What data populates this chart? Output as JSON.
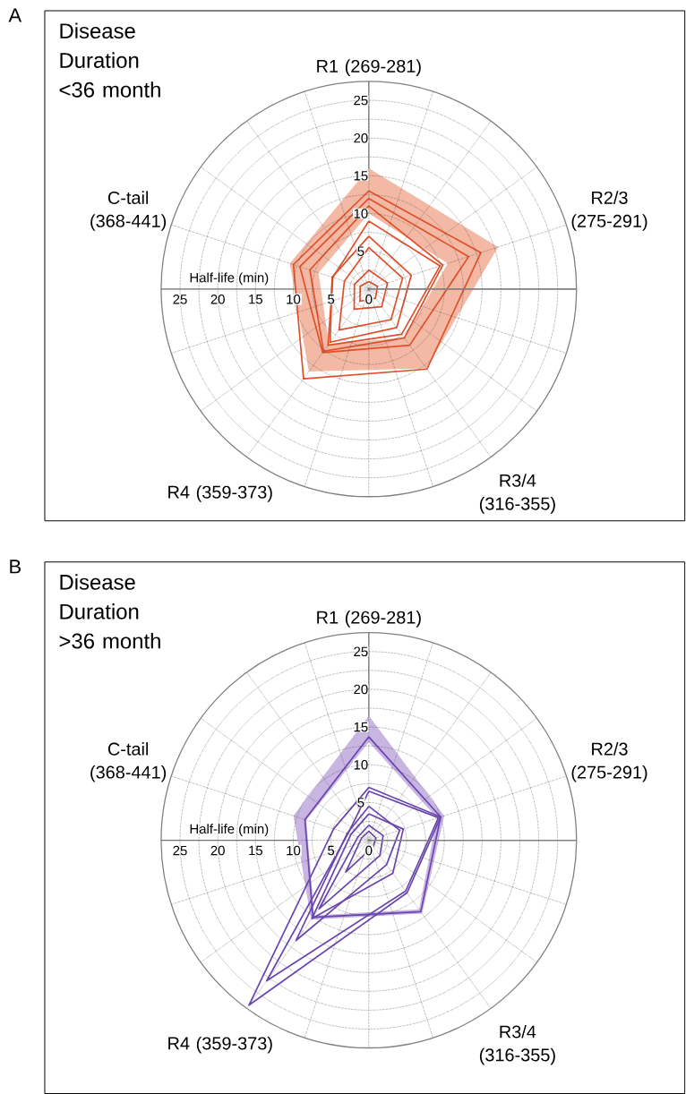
{
  "chart_data": [
    {
      "type": "radar",
      "title": "Disease Duration <36 month",
      "ylabel": "Half-life (min)",
      "annotations": [
        "A",
        "5",
        "10",
        "15",
        "20",
        "25"
      ],
      "categories": [
        "R1 (269-281)",
        "R2/3 (275-291)",
        "R3/4 (316-355)",
        "R4 (359-373)",
        "C-tail (368-441)"
      ],
      "ylim": [
        0,
        27.5
      ],
      "yticks": [
        0,
        5,
        10,
        15,
        20,
        25
      ],
      "grid": true,
      "series": [
        {
          "type": "area",
          "color": "#f3b9a4",
          "values": [
            16,
            18,
            13,
            13.5,
            11
          ]
        },
        {
          "type": "area",
          "color": "#ffffff",
          "values": [
            10,
            11,
            8,
            9,
            7
          ]
        },
        {
          "color": "#e0502a",
          "values": [
            13,
            15.6,
            13.1,
            14.7,
            10.5
          ]
        },
        {
          "color": "#e0502a",
          "values": [
            12,
            13.9,
            9.2,
            10.4,
            9.6
          ]
        },
        {
          "color": "#e0502a",
          "values": [
            11,
            10.3,
            8,
            10.2,
            8.2
          ]
        },
        {
          "color": "#e0502a",
          "values": [
            9,
            9.9,
            7.4,
            9.2,
            5
          ]
        },
        {
          "color": "#e0502a",
          "values": [
            7,
            5.9,
            6.3,
            8.7,
            5.1
          ]
        },
        {
          "color": "#e0502a",
          "values": [
            5.5,
            4.7,
            5,
            6.7,
            3.4
          ]
        },
        {
          "color": "#e0502a",
          "values": [
            2.5,
            2.6,
            2.9,
            3.3,
            2
          ]
        },
        {
          "color": "#e0502a",
          "values": [
            1,
            1.2,
            1.5,
            2,
            1.2
          ]
        }
      ]
    },
    {
      "type": "radar",
      "title": "Disease Duration >36 month",
      "ylabel": "Half-life (min)",
      "annotations": [
        "B",
        "5",
        "10",
        "15",
        "20",
        "25"
      ],
      "categories": [
        "R1 (269-281)",
        "R2/3 (275-291)",
        "R3/4 (316-355)",
        "R4 (359-373)",
        "C-tail (368-441)"
      ],
      "ylim": [
        0,
        27.5
      ],
      "yticks": [
        0,
        5,
        10,
        15,
        20,
        25
      ],
      "grid": true,
      "series": [
        {
          "type": "area",
          "color": "#c8b5e2",
          "values": [
            16.5,
            10.5,
            12,
            13,
            10.5
          ]
        },
        {
          "type": "area",
          "color": "#ffffff",
          "values": [
            13,
            9.5,
            11.3,
            12.3,
            8.7
          ]
        },
        {
          "color": "#6a45b0",
          "values": [
            13.7,
            10,
            11.7,
            12.6,
            8.9
          ]
        },
        {
          "color": "#6a45b0",
          "values": [
            7,
            10,
            8.6,
            27,
            4.9
          ]
        },
        {
          "color": "#6a45b0",
          "values": [
            6.5,
            9.7,
            8.3,
            23,
            2.9
          ]
        },
        {
          "color": "#6a45b0",
          "values": [
            4.5,
            4.3,
            4,
            16.4,
            3
          ]
        },
        {
          "color": "#6a45b0",
          "values": [
            3.5,
            4.8,
            5.4,
            12.8,
            2.5
          ]
        },
        {
          "color": "#6a45b0",
          "values": [
            2,
            2,
            2.5,
            11.2,
            1.5
          ]
        },
        {
          "color": "#6a45b0",
          "values": [
            1.2,
            1,
            1,
            5.2,
            1
          ]
        }
      ]
    }
  ]
}
